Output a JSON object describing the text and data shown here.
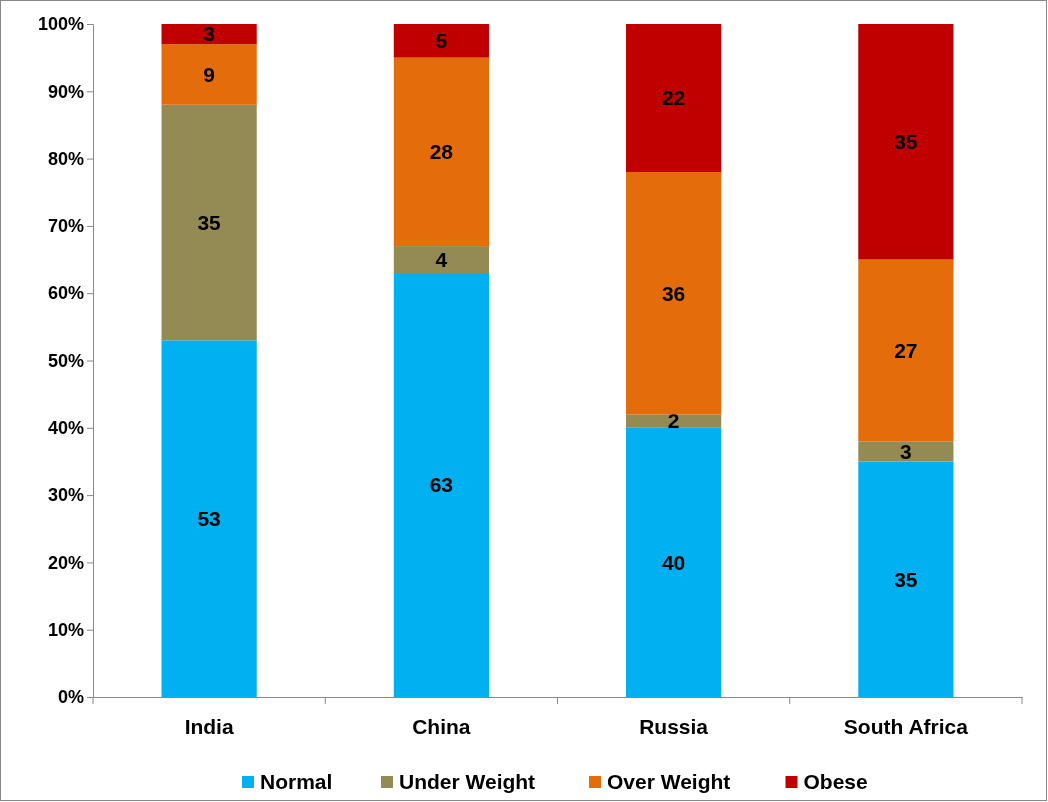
{
  "chart_data": {
    "type": "bar",
    "stacked": true,
    "categories": [
      "India",
      "China",
      "Russia",
      "South Africa"
    ],
    "series": [
      {
        "name": "Normal",
        "color": "#00b0f0",
        "values": [
          53,
          63,
          40,
          35
        ]
      },
      {
        "name": "Under Weight",
        "color": "#948a54",
        "values": [
          35,
          4,
          2,
          3
        ]
      },
      {
        "name": "Over Weight",
        "color": "#e46c0a",
        "values": [
          9,
          28,
          36,
          27
        ]
      },
      {
        "name": "Obese",
        "color": "#c00000",
        "values": [
          3,
          5,
          22,
          35
        ]
      }
    ],
    "ylim": [
      0,
      100
    ],
    "yticks": [
      {
        "value": 0,
        "label": "0%"
      },
      {
        "value": 10,
        "label": "10%"
      },
      {
        "value": 20,
        "label": "20%"
      },
      {
        "value": 30,
        "label": "30%"
      },
      {
        "value": 40,
        "label": "40%"
      },
      {
        "value": 50,
        "label": "50%"
      },
      {
        "value": 60,
        "label": "60%"
      },
      {
        "value": 70,
        "label": "70%"
      },
      {
        "value": 80,
        "label": "80%"
      },
      {
        "value": 90,
        "label": "90%"
      },
      {
        "value": 100,
        "label": "100%"
      }
    ],
    "data_labels": true,
    "legend": "bottom",
    "grid": false
  }
}
